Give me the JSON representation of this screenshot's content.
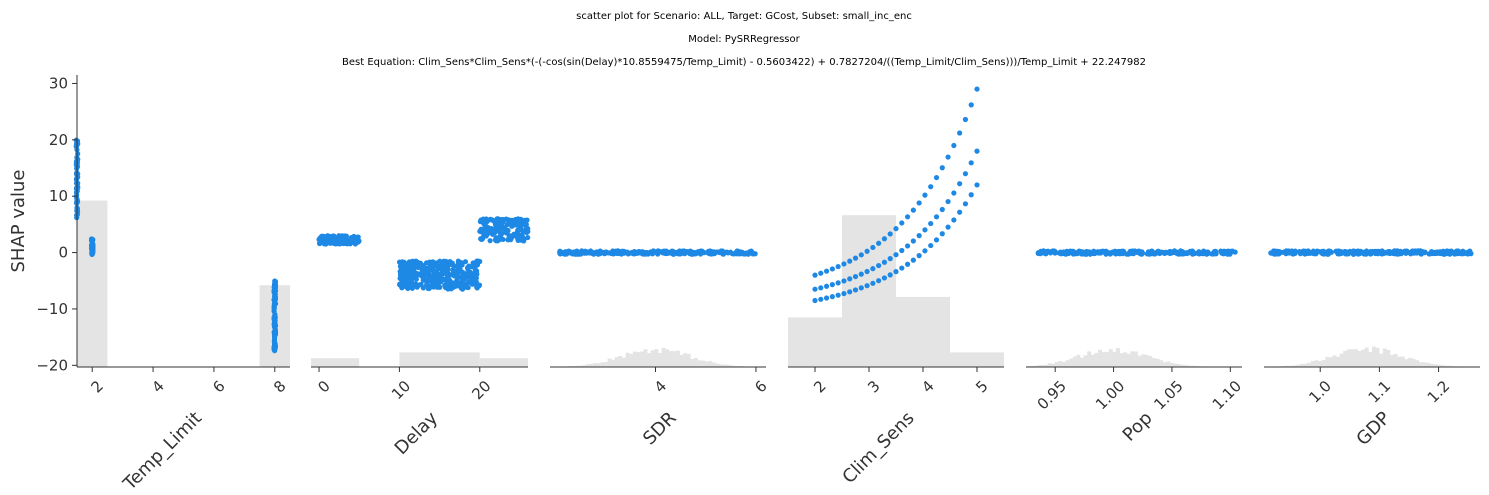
{
  "title": {
    "line1": "scatter plot for Scenario: ALL, Target: GCost, Subset: small_inc_enc",
    "line2": "Model: PySRRegressor",
    "line3": "Best Equation: Clim_Sens*Clim_Sens*(-(-cos(sin(Delay)*10.8559475/Temp_Limit) - 0.5603422) + 0.7827204/((Temp_Limit/Clim_Sens)))/Temp_Limit + 22.247982"
  },
  "colors": {
    "point": "#1e88e5",
    "hist": "#e4e4e4",
    "axis": "#333333",
    "text": "#333333"
  },
  "chart_data": [
    {
      "type": "scatter",
      "feature": "Temp_Limit",
      "xlabel": "Temp_Limit",
      "ylabel": "SHAP value",
      "xlim": [
        1.5,
        8.5
      ],
      "ylim": [
        -20.3,
        31.5
      ],
      "xticks": [
        2,
        4,
        6,
        8
      ],
      "xtick_labels": [
        "2",
        "4",
        "6",
        "8"
      ],
      "yticks": [
        -20,
        -10,
        0,
        10,
        20,
        30
      ],
      "ytick_labels": [
        "−20",
        "−10",
        "0",
        "10",
        "20",
        "30"
      ],
      "point_clusters": [
        {
          "x": 1.5,
          "x_spread": 0.05,
          "y_min": 6,
          "y_max": 20,
          "count": 70
        },
        {
          "x": 2.0,
          "x_spread": 0.05,
          "y_min": -0.5,
          "y_max": 2.5,
          "count": 45
        },
        {
          "x": 8.0,
          "x_spread": 0.05,
          "y_min": -18,
          "y_max": -5,
          "count": 90
        }
      ],
      "histogram": [
        {
          "x0": 1.5,
          "x1": 2.5,
          "height": 0.57
        },
        {
          "x0": 7.5,
          "x1": 8.5,
          "height": 0.28
        }
      ]
    },
    {
      "type": "scatter",
      "feature": "Delay",
      "xlabel": "Delay",
      "xlim": [
        -1,
        26
      ],
      "ylim": [
        -20.3,
        31.5
      ],
      "xticks": [
        0,
        10,
        20
      ],
      "xtick_labels": [
        "0",
        "10",
        "20"
      ],
      "point_clusters": [
        {
          "x_min": 0,
          "x_max": 5,
          "y_min": 1.5,
          "y_max": 3,
          "count": 150
        },
        {
          "x_min": 10,
          "x_max": 20,
          "y_min": -6.5,
          "y_max": -1.5,
          "count": 350
        },
        {
          "x_min": 20,
          "x_max": 26,
          "y_min": 2,
          "y_max": 6,
          "count": 170
        }
      ],
      "histogram": [
        {
          "x0": -1,
          "x1": 5,
          "height": 0.03
        },
        {
          "x0": 10,
          "x1": 20,
          "height": 0.05
        },
        {
          "x0": 20,
          "x1": 26,
          "height": 0.03
        }
      ]
    },
    {
      "type": "scatter",
      "feature": "SDR",
      "xlabel": "SDR",
      "xlim": [
        1.9,
        6.2
      ],
      "ylim": [
        -20.3,
        31.5
      ],
      "xticks": [
        4,
        6
      ],
      "xtick_labels": [
        "4",
        "6"
      ],
      "point_clusters": [
        {
          "x_min": 2.05,
          "x_max": 6.0,
          "y_min": -0.3,
          "y_max": 0.3,
          "count": 260
        }
      ],
      "histogram_peak_x": 4.0,
      "histogram_peak_height": 0.06
    },
    {
      "type": "scatter",
      "feature": "Clim_Sens",
      "xlabel": "Clim_Sens",
      "xlim": [
        1.5,
        5.5
      ],
      "ylim": [
        -20.3,
        31.5
      ],
      "xticks": [
        2,
        3,
        4,
        5
      ],
      "xtick_labels": [
        "2",
        "3",
        "4",
        "5"
      ],
      "curves": [
        {
          "name_hint": "upper",
          "x_range": [
            2.0,
            5.0
          ],
          "y_start": -4,
          "y_end": 29
        },
        {
          "name_hint": "middle",
          "x_range": [
            2.0,
            5.0
          ],
          "y_start": -6.5,
          "y_end": 18
        },
        {
          "name_hint": "lower",
          "x_range": [
            2.0,
            5.0
          ],
          "y_start": -8.5,
          "y_end": 12
        }
      ],
      "histogram": [
        {
          "x0": 1.5,
          "x1": 2.5,
          "height": 0.17
        },
        {
          "x0": 2.5,
          "x1": 3.5,
          "height": 0.52
        },
        {
          "x0": 3.5,
          "x1": 4.5,
          "height": 0.24
        },
        {
          "x0": 4.5,
          "x1": 5.5,
          "height": 0.05
        }
      ]
    },
    {
      "type": "scatter",
      "feature": "Pop",
      "xlabel": "Pop",
      "xlim": [
        0.925,
        1.11
      ],
      "ylim": [
        -20.3,
        31.5
      ],
      "xticks": [
        0.95,
        1.0,
        1.05,
        1.1
      ],
      "xtick_labels": [
        "0.95",
        "1.00",
        "1.05",
        "1.10"
      ],
      "point_clusters": [
        {
          "x_min": 0.935,
          "x_max": 1.105,
          "y_min": -0.3,
          "y_max": 0.3,
          "count": 260
        }
      ],
      "histogram_peak_x": 1.0,
      "histogram_peak_height": 0.06
    },
    {
      "type": "scatter",
      "feature": "GDP",
      "xlabel": "GDP",
      "xlim": [
        0.905,
        1.27
      ],
      "ylim": [
        -20.3,
        31.5
      ],
      "xticks": [
        1.0,
        1.1,
        1.2
      ],
      "xtick_labels": [
        "1.0",
        "1.1",
        "1.2"
      ],
      "point_clusters": [
        {
          "x_min": 0.915,
          "x_max": 1.255,
          "y_min": -0.3,
          "y_max": 0.3,
          "count": 260
        }
      ],
      "histogram_peak_x": 1.08,
      "histogram_peak_height": 0.06
    }
  ]
}
